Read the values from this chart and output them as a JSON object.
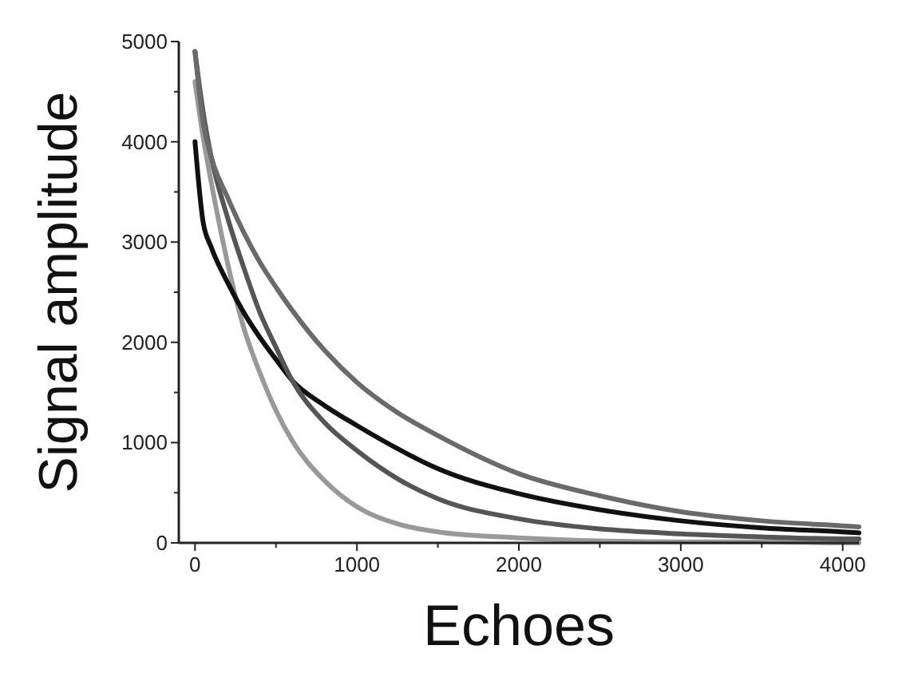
{
  "chart_data": {
    "type": "line",
    "xlabel": "Echoes",
    "ylabel": "Signal amplitude",
    "x": [
      0,
      50,
      100,
      200,
      300,
      400,
      500,
      600,
      800,
      1000,
      1250,
      1500,
      2000,
      2500,
      3000,
      3500,
      4000,
      4100
    ],
    "series": [
      {
        "color": "#999999",
        "values": [
          4600,
          4050,
          3600,
          2800,
          2150,
          1700,
          1320,
          1020,
          620,
          360,
          190,
          110,
          50,
          20,
          10,
          10,
          0,
          0
        ]
      },
      {
        "color": "#111111",
        "values": [
          4000,
          3200,
          2950,
          2600,
          2300,
          2050,
          1830,
          1620,
          1370,
          1170,
          940,
          740,
          490,
          330,
          220,
          150,
          110,
          100
        ]
      },
      {
        "color": "#555555",
        "values": [
          4900,
          4300,
          3850,
          3250,
          2750,
          2300,
          1950,
          1620,
          1200,
          920,
          640,
          440,
          240,
          140,
          90,
          60,
          40,
          40
        ]
      },
      {
        "color": "#6a6a6a",
        "values": [
          4900,
          4200,
          3850,
          3450,
          3100,
          2800,
          2550,
          2320,
          1920,
          1600,
          1300,
          1070,
          690,
          470,
          310,
          220,
          170,
          160
        ]
      }
    ],
    "xlim": [
      -100,
      4100
    ],
    "xticks": [
      0,
      {
        "value": 500,
        "label": null
      },
      1000,
      {
        "value": 1500,
        "label": null
      },
      2000,
      {
        "value": 2500,
        "label": null
      },
      3000,
      {
        "value": 3500,
        "label": null
      },
      4000
    ],
    "ylim": [
      0,
      5000
    ],
    "yticks": [
      0,
      {
        "value": 500,
        "label": null
      },
      1000,
      {
        "value": 1500,
        "label": null
      },
      2000,
      {
        "value": 2500,
        "label": null
      },
      3000,
      {
        "value": 3500,
        "label": null
      },
      4000,
      {
        "value": 4500,
        "label": null
      },
      5000
    ],
    "grid": false,
    "marker": "none",
    "line_style": "solid"
  }
}
